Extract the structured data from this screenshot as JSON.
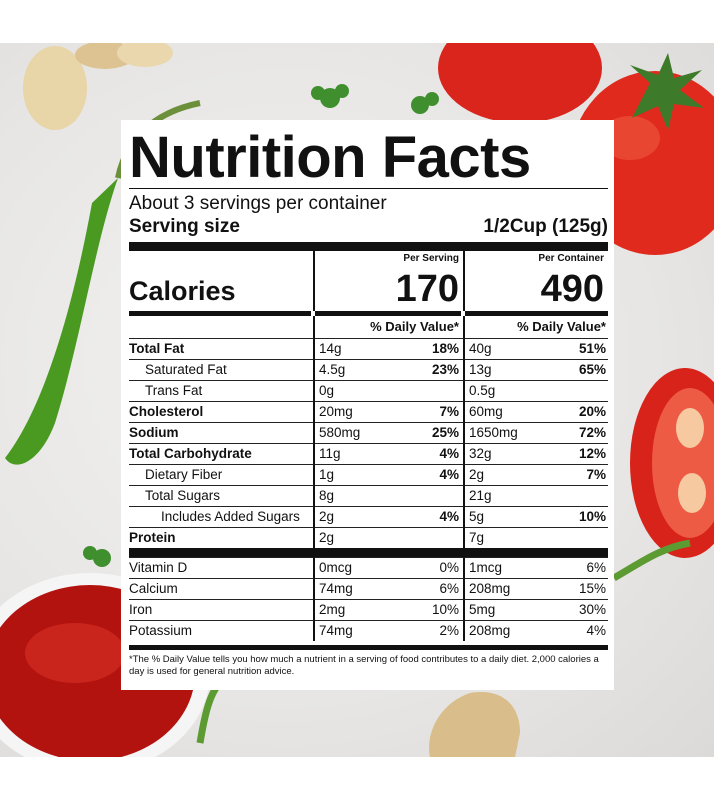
{
  "label": {
    "title": "Nutrition Facts",
    "servings_per_container": "About 3 servings per container",
    "serving_size_label": "Serving size",
    "serving_size_value": "1/2Cup (125g)",
    "per_serving_header": "Per Serving",
    "per_container_header": "Per Container",
    "calories_label": "Calories",
    "calories_serving": "170",
    "calories_container": "490",
    "dv_header": "% Daily Value*",
    "nutrients": [
      {
        "name": "Total Fat",
        "s_amt": "14g",
        "s_dv": "18%",
        "c_amt": "40g",
        "c_dv": "51%"
      },
      {
        "name": "Saturated Fat",
        "s_amt": "4.5g",
        "s_dv": "23%",
        "c_amt": "13g",
        "c_dv": "65%"
      },
      {
        "name": "Trans Fat",
        "s_amt": "0g",
        "s_dv": "",
        "c_amt": "0.5g",
        "c_dv": ""
      },
      {
        "name": "Cholesterol",
        "s_amt": "20mg",
        "s_dv": "7%",
        "c_amt": "60mg",
        "c_dv": "20%"
      },
      {
        "name": "Sodium",
        "s_amt": "580mg",
        "s_dv": "25%",
        "c_amt": "1650mg",
        "c_dv": "72%"
      },
      {
        "name": "Total Carbohydrate",
        "s_amt": "11g",
        "s_dv": "4%",
        "c_amt": "32g",
        "c_dv": "12%"
      },
      {
        "name": "Dietary Fiber",
        "s_amt": "1g",
        "s_dv": "4%",
        "c_amt": "2g",
        "c_dv": "7%"
      },
      {
        "name": "Total Sugars",
        "s_amt": "8g",
        "s_dv": "",
        "c_amt": "21g",
        "c_dv": ""
      },
      {
        "name": "Includes Added Sugars",
        "s_amt": "2g",
        "s_dv": "4%",
        "c_amt": "5g",
        "c_dv": "10%"
      },
      {
        "name": "Protein",
        "s_amt": "2g",
        "s_dv": "",
        "c_amt": "7g",
        "c_dv": ""
      }
    ],
    "vitamins": [
      {
        "name": "Vitamin D",
        "s_amt": "0mcg",
        "s_dv": "0%",
        "c_amt": "1mcg",
        "c_dv": "6%"
      },
      {
        "name": "Calcium",
        "s_amt": "74mg",
        "s_dv": "6%",
        "c_amt": "208mg",
        "c_dv": "15%"
      },
      {
        "name": "Iron",
        "s_amt": "2mg",
        "s_dv": "10%",
        "c_amt": "5mg",
        "c_dv": "30%"
      },
      {
        "name": "Potassium",
        "s_amt": "74mg",
        "s_dv": "2%",
        "c_amt": "208mg",
        "c_dv": "4%"
      }
    ],
    "footnote": "*The % Daily Value tells you how much a nutrient in a serving of food contributes to a daily diet. 2,000 calories a day is used for general nutrition advice."
  }
}
